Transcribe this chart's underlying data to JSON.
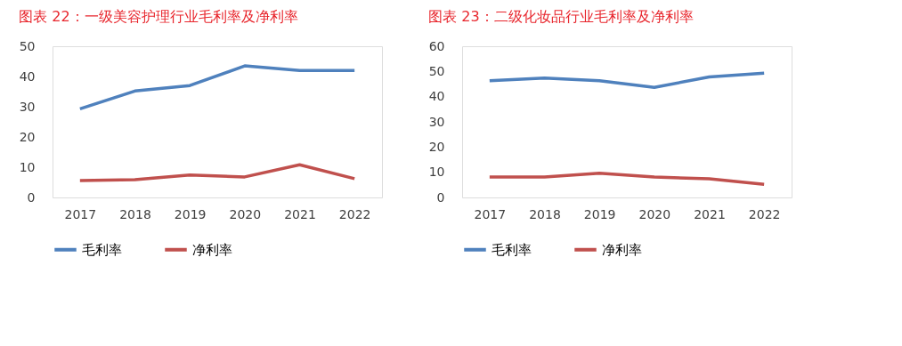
{
  "chart_data": [
    {
      "type": "line",
      "title": "图表 22：一级美容护理行业毛利率及净利率",
      "categories": [
        "2017",
        "2018",
        "2019",
        "2020",
        "2021",
        "2022"
      ],
      "ylim": [
        0,
        50
      ],
      "yticks": [
        0,
        10,
        20,
        30,
        40,
        50
      ],
      "grid": false,
      "legend": "bottom",
      "marker": "none",
      "series": [
        {
          "name": "毛利率",
          "color": "#4f81bd",
          "values": [
            29.3,
            35.2,
            37.0,
            43.5,
            42.0,
            42.0
          ]
        },
        {
          "name": "净利率",
          "color": "#c0504d",
          "values": [
            5.6,
            5.9,
            7.4,
            6.8,
            10.8,
            6.2
          ]
        }
      ]
    },
    {
      "type": "line",
      "title": "图表 23：二级化妆品行业毛利率及净利率",
      "categories": [
        "2017",
        "2018",
        "2019",
        "2020",
        "2021",
        "2022"
      ],
      "ylim": [
        0,
        60
      ],
      "yticks": [
        0,
        10,
        20,
        30,
        40,
        50,
        60
      ],
      "grid": false,
      "legend": "bottom",
      "marker": "none",
      "series": [
        {
          "name": "毛利率",
          "color": "#4f81bd",
          "values": [
            46.3,
            47.4,
            46.3,
            43.7,
            47.8,
            49.3
          ]
        },
        {
          "name": "净利率",
          "color": "#c0504d",
          "values": [
            8.1,
            8.1,
            9.6,
            8.1,
            7.4,
            5.2
          ]
        }
      ]
    }
  ]
}
